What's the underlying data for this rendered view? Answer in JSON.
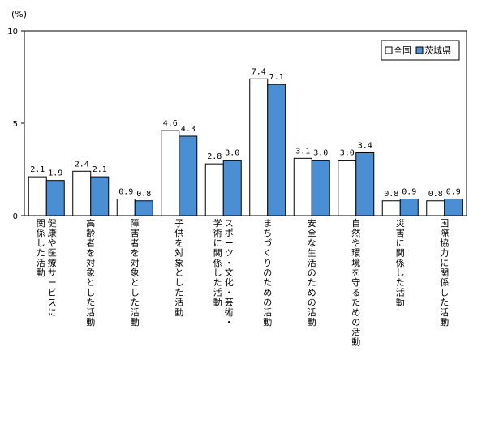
{
  "chart_data": {
    "type": "bar",
    "unit_label": "(%)",
    "ylim": [
      0,
      10
    ],
    "yticks": [
      0,
      5,
      10
    ],
    "grid": false,
    "legend_position": "top-right",
    "categories": [
      [
        "健康や医療サービスに",
        "関係した活動"
      ],
      [
        "高齢者を対象とした活動"
      ],
      [
        "障害者を対象とした活動"
      ],
      [
        "子供を対象とした活動"
      ],
      [
        "スポーツ・文化・芸術・",
        "学術に関係した活動"
      ],
      [
        "まちづくりのための活動"
      ],
      [
        "安全な生活のための活動"
      ],
      [
        "自然や環境を守るための活動"
      ],
      [
        "災害に関係した活動"
      ],
      [
        "国際協力に関係した活動"
      ]
    ],
    "series": [
      {
        "name": "全国",
        "color": "#ffffff",
        "values": [
          2.1,
          2.4,
          0.9,
          4.6,
          2.8,
          7.4,
          3.1,
          3.0,
          0.8,
          0.8
        ]
      },
      {
        "name": "茨城県",
        "color": "#4a8fd4",
        "values": [
          1.9,
          2.1,
          0.8,
          4.3,
          3.0,
          7.1,
          3.0,
          3.4,
          0.9,
          0.9
        ]
      }
    ]
  }
}
